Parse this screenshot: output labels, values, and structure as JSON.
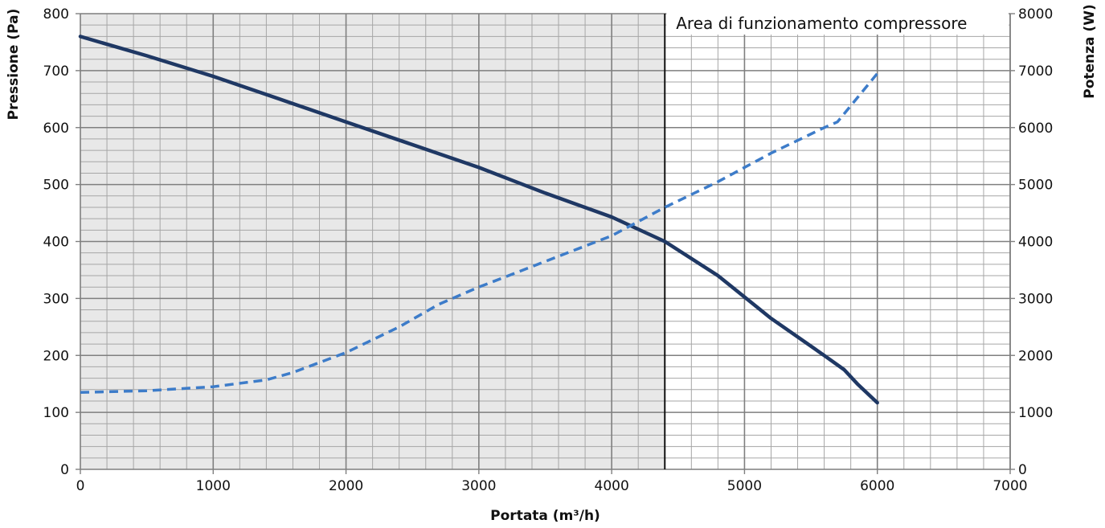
{
  "chart_data": {
    "type": "line",
    "xlabel": "Portata (m³/h)",
    "ylabel": "Pressione (Pa)",
    "y2label": "Potenza (W)",
    "xlim": [
      0,
      7000
    ],
    "ylim": [
      0,
      800
    ],
    "y2lim": [
      0,
      8000
    ],
    "x_ticks": [
      0,
      1000,
      2000,
      3000,
      4000,
      5000,
      6000,
      7000
    ],
    "y_ticks": [
      0,
      100,
      200,
      300,
      400,
      500,
      600,
      700,
      800
    ],
    "y2_ticks": [
      0,
      1000,
      2000,
      3000,
      4000,
      5000,
      6000,
      7000,
      8000
    ],
    "grid": true,
    "region": {
      "x_start": 0,
      "x_end": 4400,
      "label": "Area di funzionamento compressore",
      "fill": "#e8e8e8"
    },
    "series": [
      {
        "axis": "left",
        "style": "solid",
        "color": "#1f3864",
        "x": [
          0,
          500,
          1000,
          1500,
          2000,
          2500,
          3000,
          3500,
          4000,
          4400,
          4800,
          5200,
          5600,
          5750,
          5850,
          6000
        ],
        "y": [
          760,
          726,
          690,
          650,
          610,
          570,
          530,
          485,
          443,
          400,
          340,
          265,
          200,
          175,
          150,
          117
        ]
      },
      {
        "axis": "right",
        "style": "dashed",
        "color": "#3d7cc9",
        "x": [
          0,
          500,
          1000,
          1400,
          1600,
          2000,
          2400,
          2700,
          3000,
          3500,
          4000,
          4400,
          4800,
          5200,
          5600,
          5700,
          6000
        ],
        "y": [
          1350,
          1380,
          1450,
          1570,
          1700,
          2050,
          2500,
          2900,
          3200,
          3650,
          4100,
          4600,
          5050,
          5550,
          6000,
          6100,
          6950
        ]
      }
    ]
  }
}
